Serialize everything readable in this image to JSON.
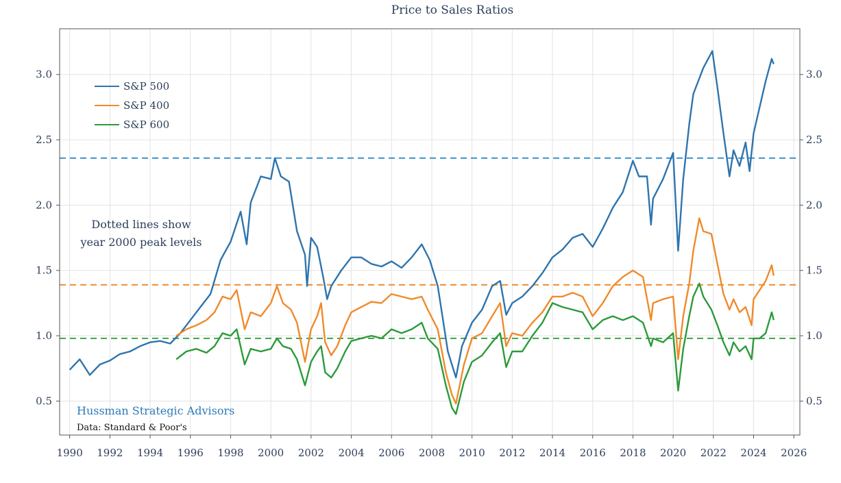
{
  "chart_data": {
    "type": "line",
    "title": "Price to Sales Ratios",
    "xlabel": "",
    "ylabel": "",
    "xlim": [
      1989.5,
      2026.3
    ],
    "ylim": [
      0.24,
      3.35
    ],
    "x_ticks": [
      "1990",
      "1992",
      "1994",
      "1996",
      "1998",
      "2000",
      "2002",
      "2004",
      "2006",
      "2008",
      "2010",
      "2012",
      "2014",
      "2016",
      "2018",
      "2020",
      "2022",
      "2024",
      "2026"
    ],
    "y_ticks": [
      "0.5",
      "1.0",
      "1.5",
      "2.0",
      "2.5",
      "3.0"
    ],
    "y_ticks_right": [
      "0.5",
      "1.0",
      "1.5",
      "2.0",
      "2.5",
      "3.0"
    ],
    "grid": true,
    "legend_position": "top-left",
    "series": [
      {
        "name": "S&P 500",
        "color": "#2e74ad",
        "points": [
          [
            1990.0,
            0.74
          ],
          [
            1990.5,
            0.82
          ],
          [
            1991.0,
            0.7
          ],
          [
            1991.5,
            0.78
          ],
          [
            1992.0,
            0.81
          ],
          [
            1992.5,
            0.86
          ],
          [
            1993.0,
            0.88
          ],
          [
            1993.5,
            0.92
          ],
          [
            1994.0,
            0.95
          ],
          [
            1994.5,
            0.96
          ],
          [
            1995.0,
            0.94
          ],
          [
            1995.5,
            1.02
          ],
          [
            1996.0,
            1.12
          ],
          [
            1996.5,
            1.22
          ],
          [
            1997.0,
            1.32
          ],
          [
            1997.5,
            1.58
          ],
          [
            1998.0,
            1.72
          ],
          [
            1998.5,
            1.95
          ],
          [
            1998.8,
            1.7
          ],
          [
            1999.0,
            2.02
          ],
          [
            1999.5,
            2.22
          ],
          [
            2000.0,
            2.2
          ],
          [
            2000.2,
            2.36
          ],
          [
            2000.5,
            2.22
          ],
          [
            2000.9,
            2.18
          ],
          [
            2001.3,
            1.8
          ],
          [
            2001.7,
            1.62
          ],
          [
            2001.8,
            1.38
          ],
          [
            2002.0,
            1.75
          ],
          [
            2002.3,
            1.68
          ],
          [
            2002.6,
            1.45
          ],
          [
            2002.8,
            1.28
          ],
          [
            2003.0,
            1.38
          ],
          [
            2003.5,
            1.5
          ],
          [
            2004.0,
            1.6
          ],
          [
            2004.5,
            1.6
          ],
          [
            2005.0,
            1.55
          ],
          [
            2005.5,
            1.53
          ],
          [
            2006.0,
            1.57
          ],
          [
            2006.5,
            1.52
          ],
          [
            2007.0,
            1.6
          ],
          [
            2007.5,
            1.7
          ],
          [
            2007.9,
            1.58
          ],
          [
            2008.3,
            1.38
          ],
          [
            2008.8,
            0.88
          ],
          [
            2009.2,
            0.68
          ],
          [
            2009.5,
            0.92
          ],
          [
            2010.0,
            1.1
          ],
          [
            2010.5,
            1.2
          ],
          [
            2011.0,
            1.38
          ],
          [
            2011.4,
            1.42
          ],
          [
            2011.7,
            1.16
          ],
          [
            2012.0,
            1.25
          ],
          [
            2012.5,
            1.3
          ],
          [
            2013.0,
            1.38
          ],
          [
            2013.5,
            1.48
          ],
          [
            2014.0,
            1.6
          ],
          [
            2014.5,
            1.66
          ],
          [
            2015.0,
            1.75
          ],
          [
            2015.5,
            1.78
          ],
          [
            2016.0,
            1.68
          ],
          [
            2016.5,
            1.82
          ],
          [
            2017.0,
            1.98
          ],
          [
            2017.5,
            2.1
          ],
          [
            2018.0,
            2.34
          ],
          [
            2018.3,
            2.22
          ],
          [
            2018.7,
            2.22
          ],
          [
            2018.9,
            1.85
          ],
          [
            2019.0,
            2.05
          ],
          [
            2019.5,
            2.2
          ],
          [
            2020.0,
            2.4
          ],
          [
            2020.25,
            1.65
          ],
          [
            2020.5,
            2.2
          ],
          [
            2020.8,
            2.62
          ],
          [
            2021.0,
            2.85
          ],
          [
            2021.5,
            3.05
          ],
          [
            2021.95,
            3.18
          ],
          [
            2022.2,
            2.9
          ],
          [
            2022.5,
            2.55
          ],
          [
            2022.8,
            2.22
          ],
          [
            2023.0,
            2.42
          ],
          [
            2023.3,
            2.3
          ],
          [
            2023.6,
            2.48
          ],
          [
            2023.8,
            2.26
          ],
          [
            2024.0,
            2.55
          ],
          [
            2024.3,
            2.75
          ],
          [
            2024.6,
            2.95
          ],
          [
            2024.9,
            3.12
          ],
          [
            2025.0,
            3.08
          ]
        ]
      },
      {
        "name": "S&P 400",
        "color": "#f08a2b",
        "points": [
          [
            1995.3,
            1.0
          ],
          [
            1995.8,
            1.05
          ],
          [
            1996.3,
            1.08
          ],
          [
            1996.8,
            1.12
          ],
          [
            1997.2,
            1.18
          ],
          [
            1997.6,
            1.3
          ],
          [
            1998.0,
            1.28
          ],
          [
            1998.3,
            1.35
          ],
          [
            1998.7,
            1.05
          ],
          [
            1999.0,
            1.18
          ],
          [
            1999.5,
            1.15
          ],
          [
            2000.0,
            1.25
          ],
          [
            2000.3,
            1.38
          ],
          [
            2000.6,
            1.25
          ],
          [
            2001.0,
            1.2
          ],
          [
            2001.3,
            1.1
          ],
          [
            2001.7,
            0.8
          ],
          [
            2002.0,
            1.05
          ],
          [
            2002.3,
            1.15
          ],
          [
            2002.5,
            1.25
          ],
          [
            2002.7,
            0.95
          ],
          [
            2003.0,
            0.85
          ],
          [
            2003.3,
            0.92
          ],
          [
            2003.7,
            1.08
          ],
          [
            2004.0,
            1.18
          ],
          [
            2004.5,
            1.22
          ],
          [
            2005.0,
            1.26
          ],
          [
            2005.5,
            1.25
          ],
          [
            2006.0,
            1.32
          ],
          [
            2006.5,
            1.3
          ],
          [
            2007.0,
            1.28
          ],
          [
            2007.5,
            1.3
          ],
          [
            2007.8,
            1.2
          ],
          [
            2008.3,
            1.05
          ],
          [
            2008.7,
            0.72
          ],
          [
            2009.0,
            0.55
          ],
          [
            2009.2,
            0.48
          ],
          [
            2009.6,
            0.78
          ],
          [
            2010.0,
            0.98
          ],
          [
            2010.5,
            1.02
          ],
          [
            2011.0,
            1.15
          ],
          [
            2011.4,
            1.25
          ],
          [
            2011.7,
            0.92
          ],
          [
            2012.0,
            1.02
          ],
          [
            2012.5,
            1.0
          ],
          [
            2013.0,
            1.1
          ],
          [
            2013.5,
            1.18
          ],
          [
            2014.0,
            1.3
          ],
          [
            2014.5,
            1.3
          ],
          [
            2015.0,
            1.33
          ],
          [
            2015.5,
            1.3
          ],
          [
            2016.0,
            1.15
          ],
          [
            2016.5,
            1.25
          ],
          [
            2017.0,
            1.38
          ],
          [
            2017.5,
            1.45
          ],
          [
            2018.0,
            1.5
          ],
          [
            2018.5,
            1.45
          ],
          [
            2018.9,
            1.12
          ],
          [
            2019.0,
            1.25
          ],
          [
            2019.5,
            1.28
          ],
          [
            2020.0,
            1.3
          ],
          [
            2020.25,
            0.82
          ],
          [
            2020.5,
            1.15
          ],
          [
            2020.8,
            1.4
          ],
          [
            2021.0,
            1.65
          ],
          [
            2021.3,
            1.9
          ],
          [
            2021.5,
            1.8
          ],
          [
            2021.9,
            1.78
          ],
          [
            2022.2,
            1.55
          ],
          [
            2022.5,
            1.32
          ],
          [
            2022.8,
            1.2
          ],
          [
            2023.0,
            1.28
          ],
          [
            2023.3,
            1.18
          ],
          [
            2023.6,
            1.22
          ],
          [
            2023.9,
            1.08
          ],
          [
            2024.0,
            1.28
          ],
          [
            2024.3,
            1.35
          ],
          [
            2024.6,
            1.42
          ],
          [
            2024.9,
            1.54
          ],
          [
            2025.0,
            1.46
          ]
        ]
      },
      {
        "name": "S&P 600",
        "color": "#2b9a3a",
        "points": [
          [
            1995.3,
            0.82
          ],
          [
            1995.8,
            0.88
          ],
          [
            1996.3,
            0.9
          ],
          [
            1996.8,
            0.87
          ],
          [
            1997.2,
            0.92
          ],
          [
            1997.6,
            1.02
          ],
          [
            1998.0,
            1.0
          ],
          [
            1998.3,
            1.05
          ],
          [
            1998.7,
            0.78
          ],
          [
            1999.0,
            0.9
          ],
          [
            1999.5,
            0.88
          ],
          [
            2000.0,
            0.9
          ],
          [
            2000.3,
            0.98
          ],
          [
            2000.6,
            0.92
          ],
          [
            2001.0,
            0.9
          ],
          [
            2001.3,
            0.82
          ],
          [
            2001.7,
            0.62
          ],
          [
            2002.0,
            0.8
          ],
          [
            2002.3,
            0.88
          ],
          [
            2002.5,
            0.92
          ],
          [
            2002.7,
            0.72
          ],
          [
            2003.0,
            0.68
          ],
          [
            2003.3,
            0.75
          ],
          [
            2003.7,
            0.88
          ],
          [
            2004.0,
            0.96
          ],
          [
            2004.5,
            0.98
          ],
          [
            2005.0,
            1.0
          ],
          [
            2005.5,
            0.98
          ],
          [
            2006.0,
            1.05
          ],
          [
            2006.5,
            1.02
          ],
          [
            2007.0,
            1.05
          ],
          [
            2007.5,
            1.1
          ],
          [
            2007.8,
            0.98
          ],
          [
            2008.3,
            0.9
          ],
          [
            2008.7,
            0.62
          ],
          [
            2009.0,
            0.45
          ],
          [
            2009.2,
            0.4
          ],
          [
            2009.6,
            0.65
          ],
          [
            2010.0,
            0.8
          ],
          [
            2010.5,
            0.85
          ],
          [
            2011.0,
            0.95
          ],
          [
            2011.4,
            1.02
          ],
          [
            2011.7,
            0.76
          ],
          [
            2012.0,
            0.88
          ],
          [
            2012.5,
            0.88
          ],
          [
            2013.0,
            1.0
          ],
          [
            2013.5,
            1.1
          ],
          [
            2014.0,
            1.25
          ],
          [
            2014.5,
            1.22
          ],
          [
            2015.0,
            1.2
          ],
          [
            2015.5,
            1.18
          ],
          [
            2016.0,
            1.05
          ],
          [
            2016.5,
            1.12
          ],
          [
            2017.0,
            1.15
          ],
          [
            2017.5,
            1.12
          ],
          [
            2018.0,
            1.15
          ],
          [
            2018.5,
            1.1
          ],
          [
            2018.9,
            0.92
          ],
          [
            2019.0,
            0.98
          ],
          [
            2019.5,
            0.95
          ],
          [
            2020.0,
            1.02
          ],
          [
            2020.25,
            0.58
          ],
          [
            2020.5,
            0.9
          ],
          [
            2020.8,
            1.15
          ],
          [
            2021.0,
            1.3
          ],
          [
            2021.3,
            1.4
          ],
          [
            2021.5,
            1.3
          ],
          [
            2021.9,
            1.2
          ],
          [
            2022.2,
            1.08
          ],
          [
            2022.5,
            0.95
          ],
          [
            2022.8,
            0.85
          ],
          [
            2023.0,
            0.95
          ],
          [
            2023.3,
            0.88
          ],
          [
            2023.6,
            0.92
          ],
          [
            2023.9,
            0.82
          ],
          [
            2024.0,
            0.98
          ],
          [
            2024.3,
            0.98
          ],
          [
            2024.6,
            1.02
          ],
          [
            2024.9,
            1.18
          ],
          [
            2025.0,
            1.12
          ]
        ]
      }
    ],
    "reference_lines": [
      {
        "series": "S&P 500",
        "y": 2.36,
        "color": "#3b8fcb",
        "style": "dashed"
      },
      {
        "series": "S&P 400",
        "y": 1.39,
        "color": "#f08a2b",
        "style": "dashed"
      },
      {
        "series": "S&P 600",
        "y": 0.98,
        "color": "#3aa745",
        "style": "dashed"
      }
    ],
    "annotations": {
      "note_line1": "Dotted lines show",
      "note_line2": "year 2000 peak levels",
      "brand": "Hussman Strategic Advisors",
      "source": "Data: Standard & Poor's"
    }
  }
}
